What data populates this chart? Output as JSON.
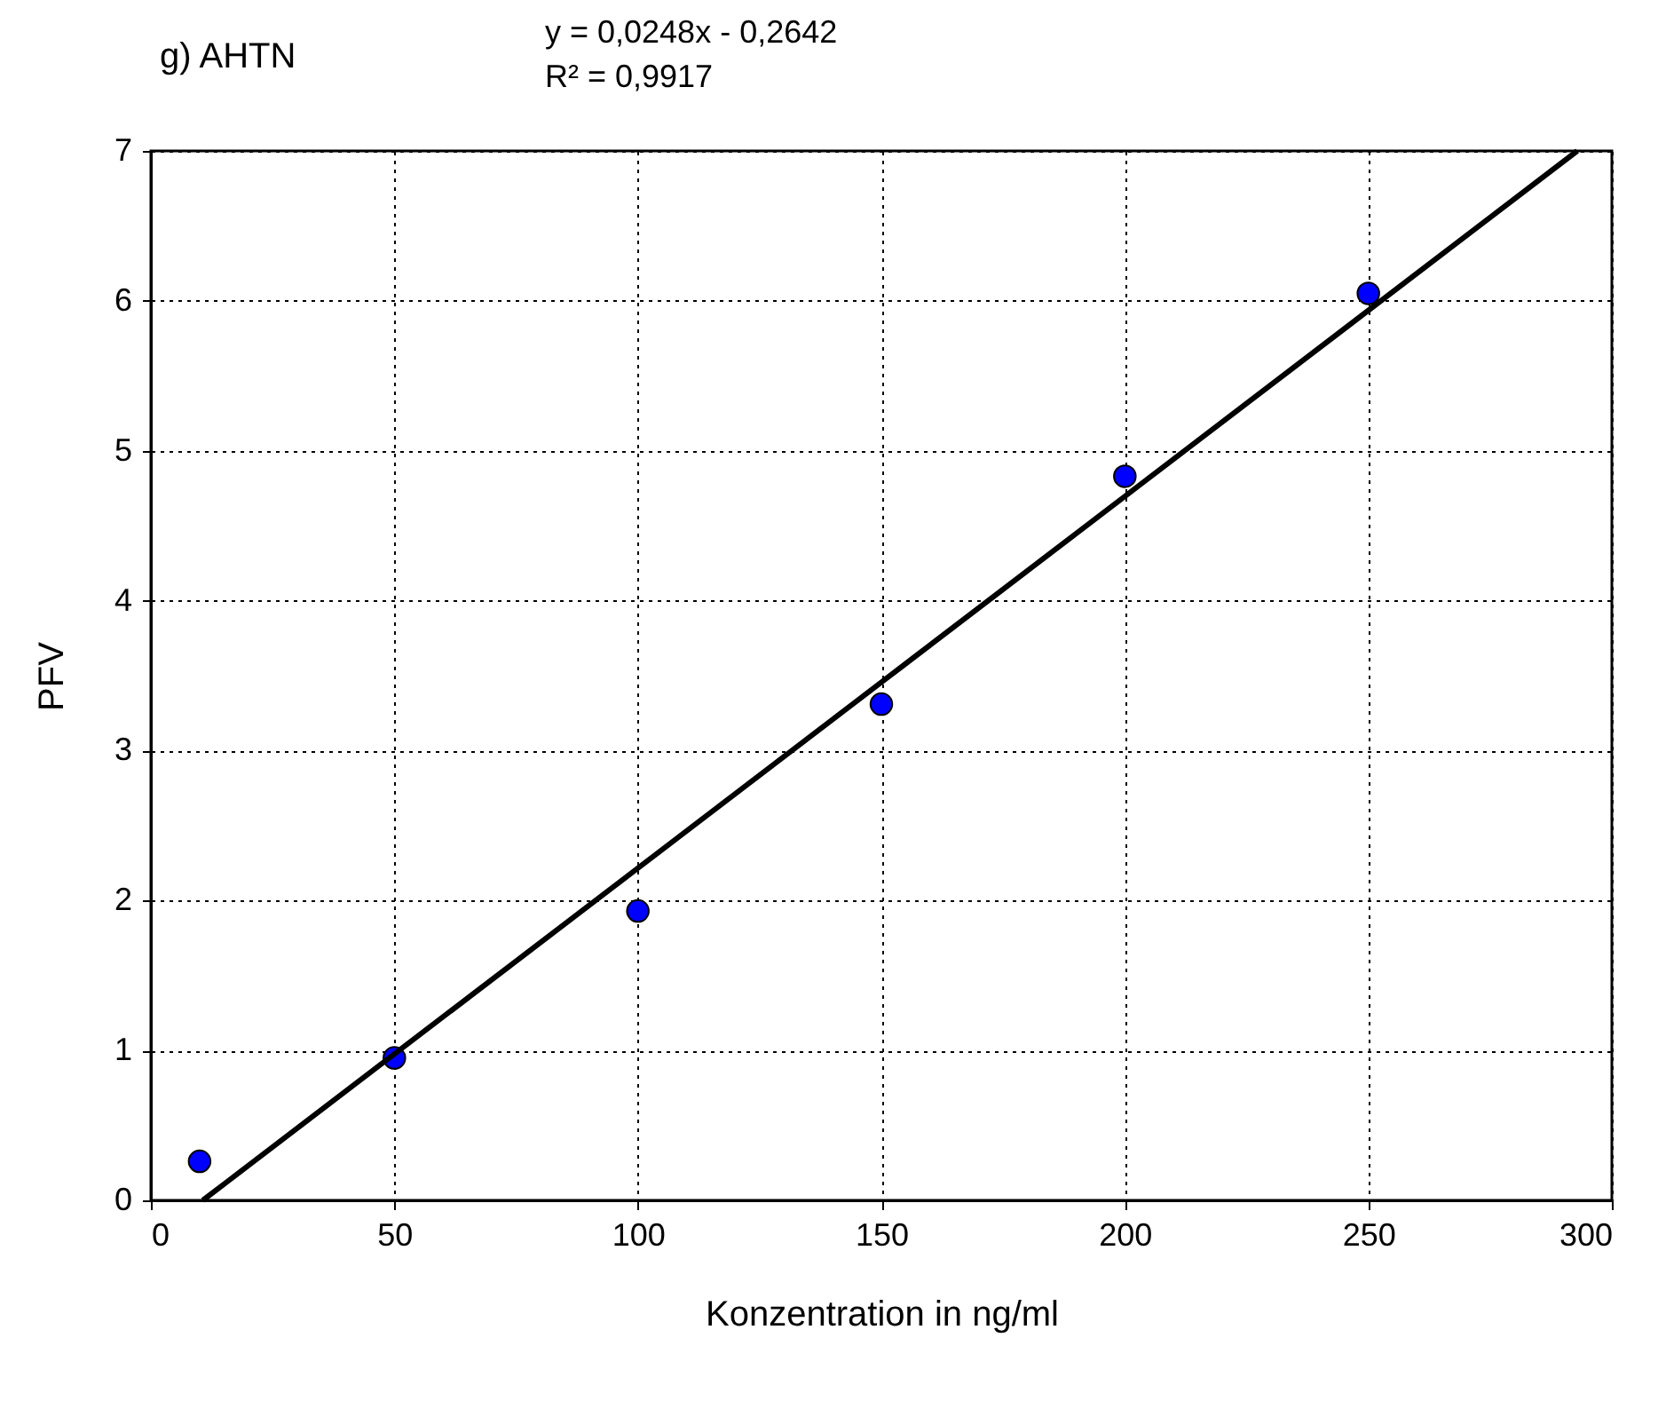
{
  "chart_data": {
    "type": "scatter",
    "title": "g) AHTN",
    "xlabel": "Konzentration in ng/ml",
    "ylabel": "PFV",
    "annotations": [
      "y = 0,0248x - 0,2642",
      "R² = 0,9917"
    ],
    "x": [
      10,
      50,
      100,
      150,
      200,
      250
    ],
    "series": [
      {
        "color": "#0000ff",
        "values": [
          0.26,
          0.95,
          1.93,
          3.31,
          4.83,
          6.05
        ],
        "marker": "circle"
      },
      {
        "type": "line",
        "color": "#000000",
        "x": [
          10.65,
          292.9
        ],
        "values": [
          0,
          7
        ],
        "marker": "none",
        "line_style": "solid"
      }
    ],
    "xlim": [
      0,
      300
    ],
    "xticks": [
      0,
      50,
      100,
      150,
      200,
      250,
      300
    ],
    "ylim": [
      0,
      7
    ],
    "yticks": [
      0,
      1,
      2,
      3,
      4,
      5,
      6,
      7
    ],
    "grid": true
  }
}
